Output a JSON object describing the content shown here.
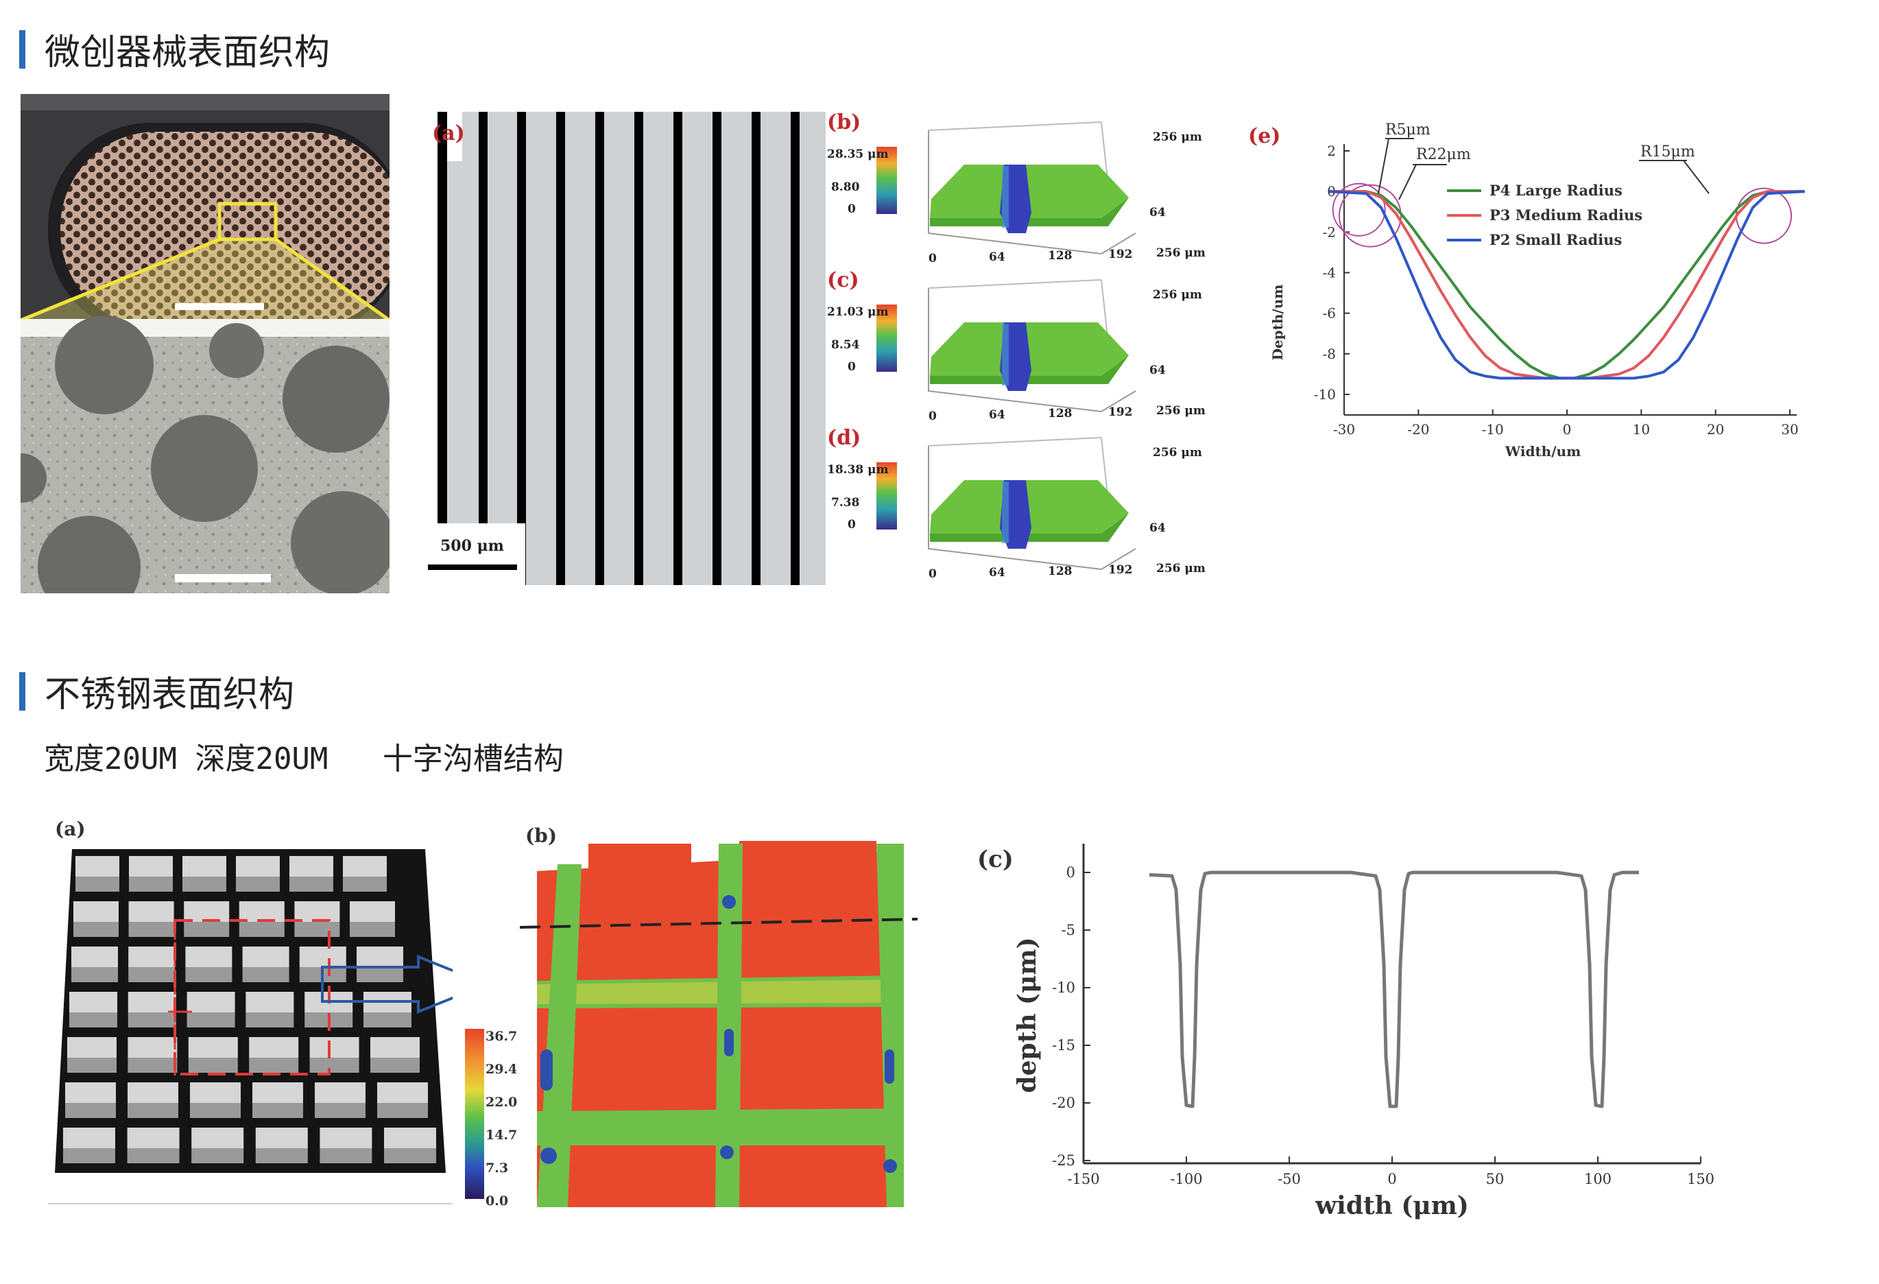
{
  "sections": [
    {
      "title": "微创器械表面织构"
    },
    {
      "title": "不锈钢表面织构",
      "subtitle": "宽度20UM 深度20UM   十字沟槽结构"
    }
  ],
  "figure1": {
    "panel_a": {
      "label": "(a)",
      "scale_bar": "500 μm"
    },
    "surface_panels": [
      {
        "label": "(b)",
        "max": "28.35 μm",
        "mid": "8.80",
        "zero": "0",
        "y_end": "256 μm",
        "y_mid": "64",
        "x_ticks": [
          "0",
          "64",
          "128",
          "192",
          "256 μm"
        ]
      },
      {
        "label": "(c)",
        "max": "21.03 μm",
        "mid": "8.54",
        "zero": "0",
        "y_end": "256 μm",
        "y_mid": "64",
        "x_ticks": [
          "0",
          "64",
          "128",
          "192",
          "256 μm"
        ]
      },
      {
        "label": "(d)",
        "max": "18.38 μm",
        "mid": "7.38",
        "zero": "0",
        "y_end": "256 μm",
        "y_mid": "64",
        "x_ticks": [
          "0",
          "64",
          "128",
          "192",
          "256 μm"
        ]
      }
    ]
  },
  "chart1": {
    "label": "(e)",
    "annotations": [
      "R5μm",
      "R22μm",
      "R15μm"
    ],
    "chart_data": {
      "type": "line",
      "xlabel": "Width/um",
      "ylabel": "Depth/um",
      "xlim": [
        -30,
        30
      ],
      "ylim": [
        -10,
        2
      ],
      "x_ticks": [
        "-30",
        "-20",
        "-10",
        "0",
        "10",
        "20",
        "30"
      ],
      "y_ticks": [
        "2",
        "0",
        "-2",
        "-4",
        "-6",
        "-8",
        "-10"
      ],
      "legend_position": "top-center",
      "series": [
        {
          "name": "P4 Large Radius",
          "color": "#3d8f3d",
          "x": [
            -32,
            -27,
            -25,
            -23,
            -21,
            -19,
            -17,
            -15,
            -13,
            -11,
            -9,
            -7,
            -5,
            -3,
            -1,
            1,
            3,
            5,
            7,
            9,
            11,
            13,
            15,
            17,
            19,
            21,
            23,
            25,
            27,
            32
          ],
          "y": [
            0,
            0,
            -0.2,
            -0.8,
            -1.7,
            -2.7,
            -3.7,
            -4.7,
            -5.7,
            -6.5,
            -7.3,
            -8.0,
            -8.6,
            -9.0,
            -9.2,
            -9.2,
            -9.0,
            -8.6,
            -8.0,
            -7.3,
            -6.5,
            -5.7,
            -4.7,
            -3.7,
            -2.7,
            -1.7,
            -0.8,
            -0.2,
            0,
            0
          ]
        },
        {
          "name": "P3 Medium Radius",
          "color": "#e0595f",
          "x": [
            -32,
            -27,
            -25,
            -23,
            -21,
            -19,
            -17,
            -15,
            -13,
            -11,
            -9,
            -7,
            -5,
            -3,
            -1,
            1,
            3,
            5,
            7,
            9,
            11,
            13,
            15,
            17,
            19,
            21,
            23,
            25,
            27,
            32
          ],
          "y": [
            0,
            0,
            -0.3,
            -1.1,
            -2.3,
            -3.6,
            -4.9,
            -6.1,
            -7.2,
            -8.1,
            -8.7,
            -9.0,
            -9.1,
            -9.2,
            -9.2,
            -9.2,
            -9.2,
            -9.1,
            -9.0,
            -8.7,
            -8.1,
            -7.2,
            -6.1,
            -4.9,
            -3.6,
            -2.3,
            -1.1,
            -0.3,
            0,
            0
          ]
        },
        {
          "name": "P2 Small Radius",
          "color": "#3057c8",
          "x": [
            -32,
            -27,
            -25,
            -23,
            -21,
            -19,
            -17,
            -15,
            -13,
            -11,
            -9,
            -7,
            -5,
            -3,
            -1,
            1,
            3,
            5,
            7,
            9,
            11,
            13,
            15,
            17,
            19,
            21,
            23,
            25,
            27,
            32
          ],
          "y": [
            0,
            -0.1,
            -0.8,
            -2.3,
            -4.0,
            -5.7,
            -7.2,
            -8.3,
            -8.9,
            -9.1,
            -9.2,
            -9.2,
            -9.2,
            -9.2,
            -9.2,
            -9.2,
            -9.2,
            -9.2,
            -9.2,
            -9.2,
            -9.1,
            -8.9,
            -8.3,
            -7.2,
            -5.7,
            -4.0,
            -2.3,
            -0.8,
            -0.1,
            0
          ]
        }
      ]
    }
  },
  "figure2": {
    "panel_a": {
      "label": "(a)"
    },
    "panel_b": {
      "label": "(b)"
    },
    "colorbar": {
      "labels": [
        "36.7",
        "29.4",
        "22.0",
        "14.7",
        "7.3",
        "0.0"
      ]
    }
  },
  "chart2": {
    "label": "(c)",
    "chart_data": {
      "type": "line",
      "xlabel": "width (μm)",
      "ylabel": "depth (μm)",
      "xlim": [
        -150,
        150
      ],
      "ylim": [
        -25,
        0
      ],
      "x_ticks": [
        "-150",
        "-100",
        "-50",
        "0",
        "50",
        "100",
        "150"
      ],
      "y_ticks": [
        "0",
        "-5",
        "-10",
        "-15",
        "-20",
        "-25"
      ],
      "series": [
        {
          "name": "",
          "color": "#777777",
          "x": [
            -118,
            -107,
            -105,
            -103,
            -102,
            -100,
            -97,
            -96,
            -95,
            -93,
            -91,
            -88,
            -80,
            -60,
            -40,
            -20,
            -8,
            -6,
            -4,
            -3,
            -1,
            2,
            3,
            4,
            6,
            8,
            10,
            20,
            40,
            60,
            80,
            92,
            94,
            96,
            97,
            99,
            102,
            103,
            104,
            106,
            108,
            112,
            120
          ],
          "y": [
            -0.2,
            -0.3,
            -1.5,
            -8,
            -16,
            -20.2,
            -20.3,
            -16,
            -8,
            -1.5,
            -0.1,
            0,
            0,
            0,
            0,
            0,
            -0.3,
            -1.5,
            -8,
            -16,
            -20.3,
            -20.3,
            -16,
            -8,
            -1.5,
            -0.1,
            0,
            0,
            0,
            0,
            0,
            -0.3,
            -1.5,
            -8,
            -16,
            -20.2,
            -20.3,
            -16,
            -8,
            -1.5,
            -0.2,
            0,
            0
          ]
        }
      ]
    }
  }
}
